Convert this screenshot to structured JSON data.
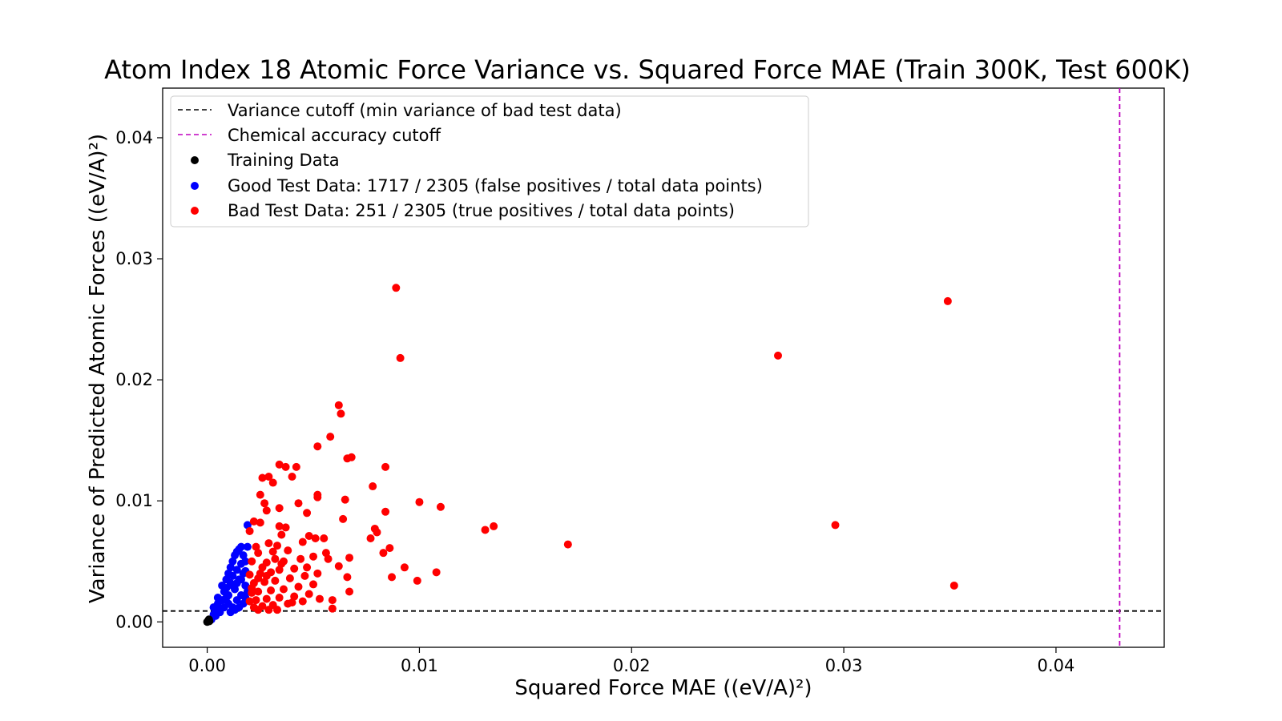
{
  "chart_data": {
    "type": "scatter",
    "title": "Atom Index 18 Atomic Force Variance vs. Squared Force MAE (Train 300K, Test 600K)",
    "xlabel": "Squared Force MAE ((eV/A)²)",
    "ylabel": "Variance of Predicted Atomic Forces ((eV/A)²)",
    "xlim": [
      -0.0021,
      0.0451
    ],
    "ylim": [
      -0.0021,
      0.0441
    ],
    "xticks": [
      0.0,
      0.01,
      0.02,
      0.03,
      0.04
    ],
    "yticks": [
      0.0,
      0.01,
      0.02,
      0.03,
      0.04
    ],
    "xtick_labels": [
      "0.00",
      "0.01",
      "0.02",
      "0.03",
      "0.04"
    ],
    "ytick_labels": [
      "0.00",
      "0.01",
      "0.02",
      "0.03",
      "0.04"
    ],
    "grid": false,
    "legend_position": "top-left",
    "reference_lines": [
      {
        "orientation": "horizontal",
        "value": 0.0009,
        "label": "Variance cutoff (min variance of bad test data)",
        "color": "#000000",
        "style": "dashed"
      },
      {
        "orientation": "vertical",
        "value": 0.043,
        "label": "Chemical accuracy cutoff",
        "color": "#bf00bf",
        "style": "dashed"
      }
    ],
    "series": [
      {
        "name": "Training Data",
        "color": "#000000",
        "points": [
          [
            0.0,
            0.0
          ],
          [
            5e-05,
            0.0001
          ],
          [
            0.0001,
            5e-05
          ],
          [
            8e-05,
            0.0002
          ]
        ]
      },
      {
        "name": "Good Test Data: 1717 / 2305 (false positives / total data points)",
        "color": "#0000ff",
        "points": [
          [
            0.0002,
            0.0002
          ],
          [
            0.0003,
            0.0006
          ],
          [
            0.0004,
            0.0009
          ],
          [
            0.0003,
            0.0012
          ],
          [
            0.0005,
            0.0015
          ],
          [
            0.0006,
            0.001
          ],
          [
            0.0005,
            0.002
          ],
          [
            0.0007,
            0.0018
          ],
          [
            0.0008,
            0.0025
          ],
          [
            0.0007,
            0.003
          ],
          [
            0.0009,
            0.0028
          ],
          [
            0.0009,
            0.0035
          ],
          [
            0.001,
            0.0022
          ],
          [
            0.001,
            0.004
          ],
          [
            0.0011,
            0.0032
          ],
          [
            0.0011,
            0.0045
          ],
          [
            0.0012,
            0.0038
          ],
          [
            0.0012,
            0.005
          ],
          [
            0.0013,
            0.0027
          ],
          [
            0.0013,
            0.0055
          ],
          [
            0.0014,
            0.0043
          ],
          [
            0.0014,
            0.0058
          ],
          [
            0.0015,
            0.0035
          ],
          [
            0.0015,
            0.006
          ],
          [
            0.0016,
            0.0048
          ],
          [
            0.0016,
            0.0062
          ],
          [
            0.0017,
            0.004
          ],
          [
            0.0017,
            0.0055
          ],
          [
            0.0018,
            0.003
          ],
          [
            0.0018,
            0.005
          ],
          [
            0.0019,
            0.0062
          ],
          [
            0.0019,
            0.008
          ],
          [
            0.0004,
            0.0005
          ],
          [
            0.0006,
            0.0008
          ],
          [
            0.0008,
            0.0012
          ],
          [
            0.001,
            0.0015
          ],
          [
            0.0012,
            0.0012
          ],
          [
            0.0014,
            0.0018
          ],
          [
            0.0016,
            0.0022
          ],
          [
            0.0018,
            0.002
          ],
          [
            0.0011,
            0.0008
          ],
          [
            0.0013,
            0.001
          ],
          [
            0.0015,
            0.0012
          ],
          [
            0.0017,
            0.0015
          ],
          [
            0.0019,
            0.0025
          ],
          [
            0.0009,
            0.002
          ],
          [
            0.0012,
            0.003
          ],
          [
            0.0014,
            0.0032
          ],
          [
            0.0016,
            0.0035
          ],
          [
            0.0018,
            0.0042
          ]
        ]
      },
      {
        "name": "Bad Test Data: 251 / 2305 (true positives / total data points)",
        "color": "#ff0000",
        "points": [
          [
            0.0089,
            0.0276
          ],
          [
            0.0349,
            0.0265
          ],
          [
            0.0269,
            0.022
          ],
          [
            0.0091,
            0.0218
          ],
          [
            0.0062,
            0.0179
          ],
          [
            0.0063,
            0.0172
          ],
          [
            0.0058,
            0.0153
          ],
          [
            0.0052,
            0.0145
          ],
          [
            0.0068,
            0.0136
          ],
          [
            0.0066,
            0.0135
          ],
          [
            0.0034,
            0.013
          ],
          [
            0.0042,
            0.0128
          ],
          [
            0.0037,
            0.0128
          ],
          [
            0.0084,
            0.0128
          ],
          [
            0.0029,
            0.012
          ],
          [
            0.004,
            0.012
          ],
          [
            0.0026,
            0.0119
          ],
          [
            0.0031,
            0.0115
          ],
          [
            0.0078,
            0.0112
          ],
          [
            0.0025,
            0.0105
          ],
          [
            0.0052,
            0.0105
          ],
          [
            0.0052,
            0.0103
          ],
          [
            0.0065,
            0.0101
          ],
          [
            0.01,
            0.0099
          ],
          [
            0.0043,
            0.0098
          ],
          [
            0.0027,
            0.0098
          ],
          [
            0.011,
            0.0095
          ],
          [
            0.0034,
            0.0094
          ],
          [
            0.0028,
            0.0092
          ],
          [
            0.0084,
            0.0091
          ],
          [
            0.0047,
            0.009
          ],
          [
            0.0064,
            0.0085
          ],
          [
            0.0022,
            0.0083
          ],
          [
            0.0025,
            0.0082
          ],
          [
            0.0135,
            0.0079
          ],
          [
            0.0296,
            0.008
          ],
          [
            0.0034,
            0.0079
          ],
          [
            0.0037,
            0.0078
          ],
          [
            0.0079,
            0.0077
          ],
          [
            0.008,
            0.0074
          ],
          [
            0.0131,
            0.0076
          ],
          [
            0.002,
            0.0075
          ],
          [
            0.0035,
            0.0072
          ],
          [
            0.0048,
            0.0071
          ],
          [
            0.0051,
            0.0069
          ],
          [
            0.0055,
            0.0069
          ],
          [
            0.0077,
            0.0069
          ],
          [
            0.017,
            0.0064
          ],
          [
            0.0086,
            0.0061
          ],
          [
            0.0045,
            0.0066
          ],
          [
            0.0029,
            0.0065
          ],
          [
            0.0033,
            0.0063
          ],
          [
            0.0023,
            0.0062
          ],
          [
            0.0083,
            0.0057
          ],
          [
            0.0056,
            0.0057
          ],
          [
            0.0038,
            0.0059
          ],
          [
            0.0031,
            0.0058
          ],
          [
            0.0024,
            0.0057
          ],
          [
            0.0067,
            0.0053
          ],
          [
            0.005,
            0.0054
          ],
          [
            0.0044,
            0.0052
          ],
          [
            0.0057,
            0.0052
          ],
          [
            0.0036,
            0.005
          ],
          [
            0.0028,
            0.0049
          ],
          [
            0.0021,
            0.005
          ],
          [
            0.0093,
            0.0045
          ],
          [
            0.0062,
            0.0046
          ],
          [
            0.0041,
            0.0044
          ],
          [
            0.0034,
            0.0043
          ],
          [
            0.003,
            0.0041
          ],
          [
            0.0025,
            0.004
          ],
          [
            0.002,
            0.0039
          ],
          [
            0.0108,
            0.0041
          ],
          [
            0.0052,
            0.004
          ],
          [
            0.0046,
            0.0038
          ],
          [
            0.0087,
            0.0037
          ],
          [
            0.0066,
            0.0037
          ],
          [
            0.0039,
            0.0036
          ],
          [
            0.0032,
            0.0034
          ],
          [
            0.0027,
            0.0033
          ],
          [
            0.0022,
            0.0032
          ],
          [
            0.0099,
            0.0034
          ],
          [
            0.0352,
            0.003
          ],
          [
            0.005,
            0.0031
          ],
          [
            0.0043,
            0.0029
          ],
          [
            0.0036,
            0.0027
          ],
          [
            0.003,
            0.0026
          ],
          [
            0.0024,
            0.0025
          ],
          [
            0.0021,
            0.0024
          ],
          [
            0.0067,
            0.0025
          ],
          [
            0.0048,
            0.0023
          ],
          [
            0.0041,
            0.0021
          ],
          [
            0.0034,
            0.002
          ],
          [
            0.0028,
            0.0019
          ],
          [
            0.0023,
            0.0018
          ],
          [
            0.002,
            0.0017
          ],
          [
            0.0059,
            0.0018
          ],
          [
            0.0053,
            0.0019
          ],
          [
            0.0045,
            0.0017
          ],
          [
            0.0038,
            0.0015
          ],
          [
            0.0031,
            0.0014
          ],
          [
            0.0026,
            0.0013
          ],
          [
            0.0022,
            0.0012
          ],
          [
            0.0059,
            0.0011
          ],
          [
            0.0033,
            0.001
          ],
          [
            0.0029,
            0.001
          ],
          [
            0.0024,
            0.001
          ],
          [
            0.004,
            0.0016
          ],
          [
            0.0035,
            0.0048
          ],
          [
            0.0026,
            0.0045
          ],
          [
            0.0047,
            0.0045
          ],
          [
            0.0021,
            0.0028
          ],
          [
            0.0024,
            0.0036
          ],
          [
            0.0032,
            0.0052
          ],
          [
            0.0028,
            0.0038
          ]
        ]
      }
    ]
  }
}
